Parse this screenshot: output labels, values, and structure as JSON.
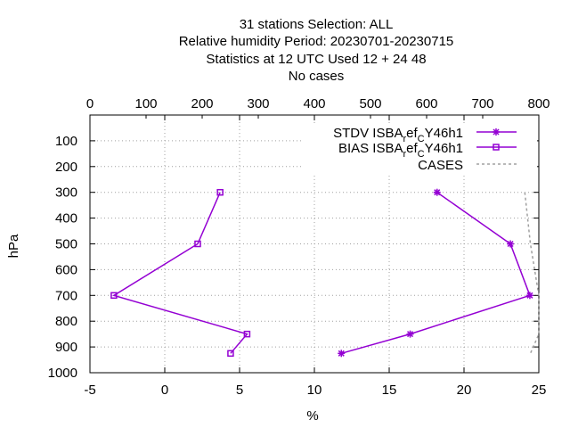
{
  "chart_data": {
    "type": "line",
    "title_lines": [
      "31 stations Selection: ALL",
      "Relative humidity  Period: 20230701-20230715",
      "Statistics at 12 UTC  Used  12 + 24 48",
      "No cases"
    ],
    "xlabel": "%",
    "ylabel": "hPa",
    "xlim": [
      -5,
      25
    ],
    "x2lim": [
      0,
      800
    ],
    "ylim": [
      1000,
      0
    ],
    "x_ticks": [
      "-5",
      "0",
      "5",
      "10",
      "15",
      "20",
      "25"
    ],
    "x2_ticks": [
      "0",
      "100",
      "200",
      "300",
      "400",
      "500",
      "600",
      "700",
      "800"
    ],
    "y_ticks": [
      "100",
      "200",
      "300",
      "400",
      "500",
      "600",
      "700",
      "800",
      "900",
      "1000"
    ],
    "grid": true,
    "legend_position": "top-right",
    "colors": {
      "series": "#9400d3",
      "cases": "#a0a0a0"
    },
    "series": [
      {
        "name": "STDV ISBA_ref_C Y46h1",
        "legend_main": "STDV ISBA",
        "legend_sub1": "r",
        "legend_mid": "ef",
        "legend_sub2": "C",
        "legend_tail": "Y46h1",
        "marker": "star",
        "points": [
          {
            "x": 18.2,
            "y": 300
          },
          {
            "x": 23.1,
            "y": 500
          },
          {
            "x": 24.4,
            "y": 700
          },
          {
            "x": 16.4,
            "y": 850
          },
          {
            "x": 11.8,
            "y": 925
          }
        ]
      },
      {
        "name": "BIAS ISBA_ref_C Y46h1",
        "legend_main": "BIAS ISBA",
        "legend_sub1": "r",
        "legend_mid": "ef",
        "legend_sub2": "C",
        "legend_tail": "Y46h1",
        "marker": "square",
        "points": [
          {
            "x": 3.7,
            "y": 300
          },
          {
            "x": 2.2,
            "y": 500
          },
          {
            "x": -3.4,
            "y": 700
          },
          {
            "x": 5.5,
            "y": 850
          },
          {
            "x": 4.4,
            "y": 925
          }
        ]
      }
    ],
    "cases": {
      "name": "CASES",
      "points": [
        {
          "x2": 775,
          "y": 300
        },
        {
          "x2": 785,
          "y": 500
        },
        {
          "x2": 800,
          "y": 700
        },
        {
          "x2": 800,
          "y": 850
        },
        {
          "x2": 785,
          "y": 925
        }
      ]
    }
  }
}
